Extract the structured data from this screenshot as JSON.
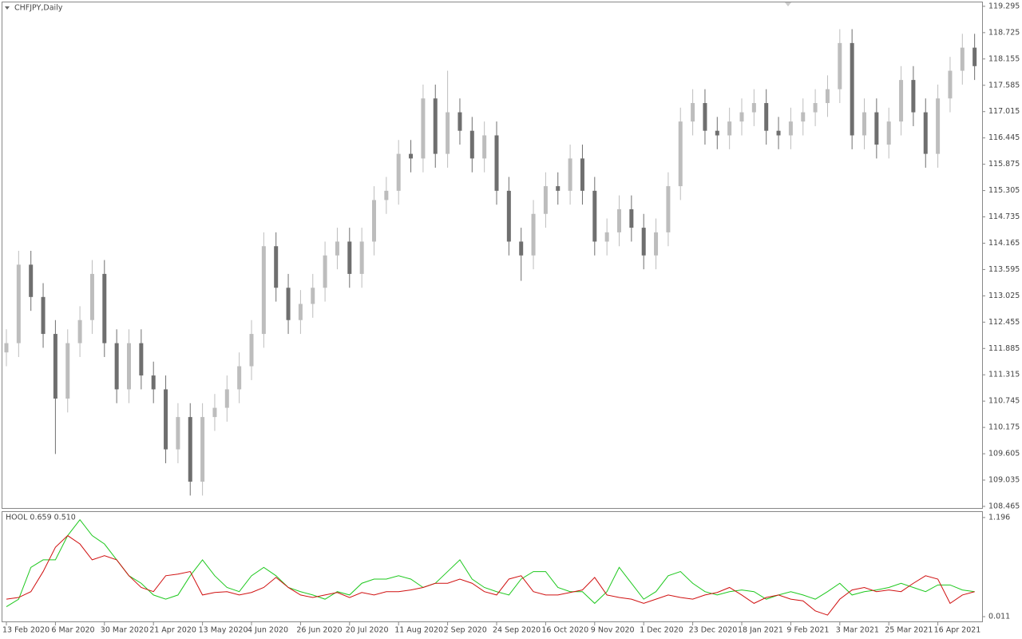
{
  "chart_data": [
    {
      "type": "candlestick",
      "title": "CHFJPY,Daily",
      "categories": [
        "13 Feb 2020",
        null,
        null,
        null,
        "6 Mar 2020",
        null,
        null,
        null,
        "30 Mar 2020",
        null,
        null,
        null,
        "21 Apr 2020",
        null,
        null,
        null,
        "13 May 2020",
        null,
        null,
        null,
        "4 Jun 2020",
        null,
        null,
        null,
        "26 Jun 2020",
        null,
        null,
        null,
        "20 Jul 2020",
        null,
        null,
        null,
        "11 Aug 2020",
        null,
        null,
        null,
        "2 Sep 2020",
        null,
        null,
        null,
        "24 Sep 2020",
        null,
        null,
        null,
        "16 Oct 2020",
        null,
        null,
        null,
        "9 Nov 2020",
        null,
        null,
        null,
        "1 Dec 2020",
        null,
        null,
        null,
        "23 Dec 2020",
        null,
        null,
        null,
        "18 Jan 2021",
        null,
        null,
        null,
        "9 Feb 2021",
        null,
        null,
        null,
        "3 Mar 2021",
        null,
        null,
        null,
        "25 Mar 2021",
        null,
        null,
        null,
        "16 Apr 2021",
        null,
        null,
        null
      ],
      "open": [
        111.8,
        112.0,
        113.7,
        113.0,
        112.2,
        110.8,
        112.0,
        112.5,
        113.5,
        112.0,
        111.0,
        112.0,
        111.3,
        111.0,
        109.7,
        110.4,
        109.0,
        110.4,
        110.6,
        111.0,
        111.5,
        112.2,
        114.1,
        113.2,
        112.5,
        112.85,
        113.2,
        113.9,
        114.2,
        113.5,
        114.2,
        115.1,
        115.3,
        116.1,
        116.0,
        117.3,
        116.1,
        117.0,
        116.6,
        116.0,
        116.5,
        115.3,
        114.2,
        113.9,
        114.8,
        115.4,
        115.3,
        116.0,
        115.3,
        114.2,
        114.4,
        114.9,
        114.5,
        113.9,
        114.4,
        115.4,
        116.8,
        117.2,
        116.6,
        116.5,
        116.8,
        117.0,
        117.2,
        116.6,
        116.5,
        116.8,
        117.0,
        117.2,
        117.5,
        118.5,
        116.5,
        117.0,
        116.3,
        116.8,
        117.7,
        117.0,
        116.1,
        117.3,
        117.9,
        118.4
      ],
      "high": [
        112.3,
        114.0,
        114.0,
        113.3,
        112.5,
        112.3,
        112.8,
        113.8,
        113.8,
        112.3,
        112.3,
        112.3,
        111.6,
        111.3,
        110.7,
        110.7,
        110.7,
        110.9,
        111.3,
        111.8,
        112.5,
        114.4,
        114.4,
        113.5,
        113.15,
        113.5,
        114.2,
        114.5,
        114.5,
        114.5,
        115.4,
        115.6,
        116.4,
        116.4,
        117.6,
        117.6,
        117.9,
        117.3,
        116.9,
        116.8,
        116.8,
        115.6,
        114.5,
        115.1,
        115.7,
        115.7,
        116.3,
        116.3,
        115.6,
        114.7,
        115.2,
        115.2,
        114.8,
        114.7,
        115.7,
        117.1,
        117.5,
        117.5,
        116.9,
        117.1,
        117.3,
        117.5,
        117.5,
        116.9,
        117.1,
        117.3,
        117.5,
        117.8,
        118.8,
        118.8,
        117.3,
        117.3,
        117.1,
        118.0,
        118.0,
        117.3,
        117.6,
        118.2,
        118.7,
        118.7
      ],
      "low": [
        111.5,
        111.7,
        112.7,
        111.9,
        109.6,
        110.5,
        111.7,
        112.2,
        111.7,
        110.7,
        110.7,
        111.0,
        110.7,
        109.4,
        109.4,
        108.7,
        108.7,
        110.1,
        110.3,
        110.7,
        111.2,
        111.9,
        112.9,
        112.2,
        112.2,
        112.55,
        112.9,
        113.6,
        113.2,
        113.2,
        113.9,
        114.8,
        115.0,
        115.7,
        115.7,
        115.8,
        115.8,
        116.3,
        115.7,
        115.7,
        115.0,
        113.9,
        113.35,
        113.6,
        114.5,
        115.0,
        115.0,
        115.0,
        113.9,
        113.9,
        114.1,
        114.2,
        113.6,
        113.6,
        114.1,
        115.1,
        116.5,
        116.3,
        116.2,
        116.2,
        116.5,
        116.7,
        116.3,
        116.2,
        116.2,
        116.5,
        116.7,
        116.9,
        117.2,
        116.2,
        116.2,
        116.0,
        116.0,
        116.5,
        116.7,
        115.8,
        115.8,
        117.0,
        117.6,
        117.7
      ],
      "close": [
        112.0,
        113.7,
        113.0,
        112.2,
        110.8,
        112.0,
        112.5,
        113.5,
        112.0,
        111.0,
        112.0,
        111.3,
        111.0,
        109.7,
        110.4,
        109.0,
        110.4,
        110.6,
        111.0,
        111.5,
        112.2,
        114.1,
        113.2,
        112.5,
        112.85,
        113.2,
        113.9,
        114.2,
        113.5,
        114.2,
        115.1,
        115.3,
        116.1,
        116.0,
        117.3,
        116.1,
        117.0,
        116.6,
        116.0,
        116.5,
        115.3,
        114.2,
        113.9,
        114.8,
        115.4,
        115.3,
        116.0,
        115.3,
        114.2,
        114.4,
        114.9,
        114.5,
        113.9,
        114.4,
        115.4,
        116.8,
        117.2,
        116.6,
        116.5,
        116.8,
        117.0,
        117.2,
        116.6,
        116.5,
        116.8,
        117.0,
        117.2,
        117.5,
        118.5,
        116.5,
        117.0,
        116.3,
        116.8,
        117.7,
        117.0,
        116.1,
        117.3,
        117.9,
        118.4,
        118.0
      ],
      "up_color": "#bdbdbd",
      "down_color": "#6f6f6f",
      "ylim": [
        108.43,
        119.38
      ],
      "yticks": [
        119.295,
        118.725,
        118.155,
        117.585,
        117.015,
        116.445,
        115.875,
        115.305,
        114.735,
        114.165,
        113.595,
        113.025,
        112.455,
        111.885,
        111.315,
        110.745,
        110.175,
        109.605,
        109.035,
        108.465
      ]
    },
    {
      "type": "line",
      "title": "HOOL 0.659 0.510",
      "series": [
        {
          "color": "#1ec81e",
          "values": [
            0.13,
            0.22,
            0.6,
            0.69,
            0.69,
            0.98,
            1.17,
            0.98,
            0.88,
            0.69,
            0.5,
            0.41,
            0.27,
            0.22,
            0.27,
            0.5,
            0.69,
            0.5,
            0.36,
            0.31,
            0.5,
            0.6,
            0.5,
            0.36,
            0.31,
            0.27,
            0.22,
            0.31,
            0.27,
            0.41,
            0.46,
            0.46,
            0.5,
            0.46,
            0.36,
            0.41,
            0.55,
            0.69,
            0.46,
            0.36,
            0.31,
            0.27,
            0.46,
            0.55,
            0.55,
            0.36,
            0.31,
            0.31,
            0.17,
            0.31,
            0.6,
            0.41,
            0.22,
            0.31,
            0.5,
            0.55,
            0.41,
            0.31,
            0.27,
            0.31,
            0.33,
            0.31,
            0.22,
            0.27,
            0.31,
            0.27,
            0.22,
            0.31,
            0.41,
            0.27,
            0.31,
            0.33,
            0.36,
            0.41,
            0.36,
            0.31,
            0.39,
            0.39,
            0.33,
            0.31
          ]
        },
        {
          "color": "#d01010",
          "values": [
            0.22,
            0.24,
            0.31,
            0.55,
            0.84,
            0.98,
            0.88,
            0.69,
            0.74,
            0.69,
            0.5,
            0.36,
            0.31,
            0.5,
            0.52,
            0.55,
            0.27,
            0.3,
            0.31,
            0.27,
            0.3,
            0.36,
            0.48,
            0.36,
            0.27,
            0.24,
            0.27,
            0.3,
            0.24,
            0.3,
            0.27,
            0.31,
            0.31,
            0.33,
            0.36,
            0.41,
            0.41,
            0.46,
            0.41,
            0.31,
            0.27,
            0.46,
            0.5,
            0.31,
            0.27,
            0.27,
            0.3,
            0.33,
            0.48,
            0.27,
            0.24,
            0.22,
            0.17,
            0.22,
            0.27,
            0.24,
            0.22,
            0.27,
            0.3,
            0.36,
            0.27,
            0.17,
            0.24,
            0.27,
            0.22,
            0.2,
            0.08,
            0.03,
            0.22,
            0.33,
            0.36,
            0.31,
            0.33,
            0.31,
            0.41,
            0.5,
            0.46,
            0.17,
            0.27,
            0.31
          ]
        }
      ],
      "ylim": [
        -0.046,
        1.262
      ],
      "yticks": [
        1.196,
        0.011
      ]
    }
  ]
}
